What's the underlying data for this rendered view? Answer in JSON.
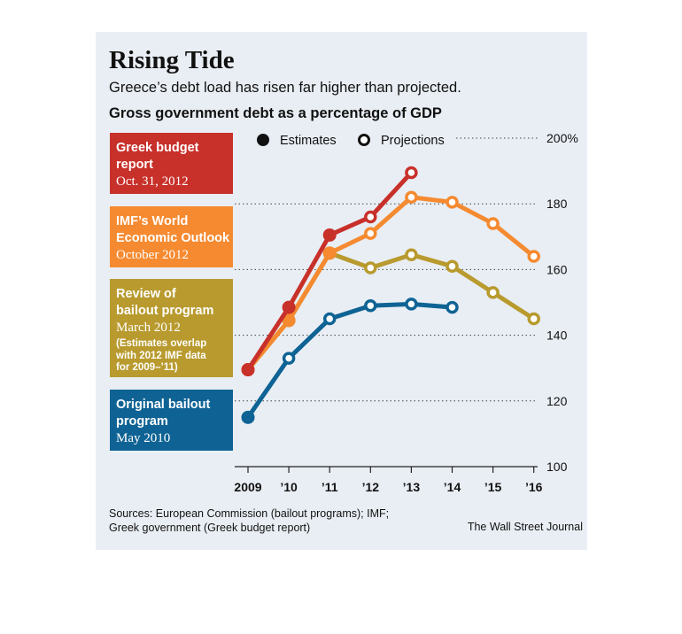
{
  "header": {
    "title": "Rising Tide",
    "subtitle": "Greece’s debt load has risen far higher than projected.",
    "chart_title": "Gross government debt as a percentage of GDP"
  },
  "legend": {
    "estimates": "Estimates",
    "projections": "Projections"
  },
  "boxes": [
    {
      "line1": "Greek budget",
      "line2": "report",
      "line3": "Oct. 31, 2012",
      "color": "#c8302a"
    },
    {
      "line1": "IMF’s World",
      "line2": "Economic Outlook",
      "line3": "October 2012",
      "color": "#f58a30"
    },
    {
      "line1": "Review of",
      "line2": "bailout program",
      "line3": "March 2012",
      "note1": "(Estimates overlap",
      "note2": "with 2012 IMF data",
      "note3": "for 2009–’11)",
      "color": "#b89a2e"
    },
    {
      "line1": "Original bailout",
      "line2": "program",
      "line3": "May 2010",
      "color": "#0f6394"
    }
  ],
  "footer": {
    "source_line1": "Sources: European Commission (bailout programs); IMF;",
    "source_line2": "Greek government (Greek budget report)",
    "credit": "The Wall Street Journal"
  },
  "chart_data": {
    "type": "line",
    "categories": [
      "2009",
      "’10",
      "’11",
      "’12",
      "’13",
      "’14",
      "’15",
      "’16"
    ],
    "y_ticks": [
      "100",
      "120",
      "140",
      "160",
      "180",
      "200%"
    ],
    "ylim": [
      100,
      200
    ],
    "grid": "dotted horizontal",
    "legend_position": "top",
    "series": [
      {
        "name": "Original bailout program",
        "color": "#0f6394",
        "values": [
          115,
          133,
          145,
          149,
          149.5,
          148.5,
          null,
          null
        ],
        "markers": [
          "estimate",
          "projection",
          "projection",
          "projection",
          "projection",
          "projection",
          null,
          null
        ]
      },
      {
        "name": "Review of bailout program",
        "color": "#b89a2e",
        "values": [
          129.5,
          144.5,
          165,
          160.5,
          164.5,
          161,
          153,
          145
        ],
        "markers": [
          "estimate",
          "estimate",
          "estimate",
          "projection",
          "projection",
          "projection",
          "projection",
          "projection"
        ]
      },
      {
        "name": "IMF’s World Economic Outlook",
        "color": "#f58a30",
        "values": [
          129.5,
          144.5,
          165,
          171,
          182,
          180.5,
          174,
          164
        ],
        "markers": [
          "estimate",
          "estimate",
          "estimate",
          "projection",
          "projection",
          "projection",
          "projection",
          "projection"
        ]
      },
      {
        "name": "Greek budget report",
        "color": "#c8302a",
        "values": [
          129.5,
          148.5,
          170.5,
          176,
          189.5,
          null,
          null,
          null
        ],
        "markers": [
          "estimate",
          "estimate",
          "estimate",
          "projection",
          "projection",
          null,
          null,
          null
        ]
      }
    ]
  }
}
